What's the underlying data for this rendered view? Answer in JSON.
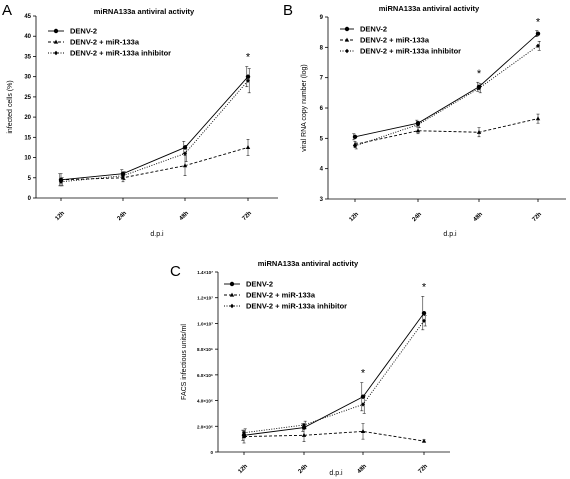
{
  "chart_data": [
    {
      "panel": "A",
      "type": "line",
      "title": "miRNA133a antiviral activity",
      "xlabel": "d.p.i",
      "ylabel": "infected cells (%)",
      "categories": [
        "12h",
        "24h",
        "48h",
        "72h"
      ],
      "ylim": [
        0,
        45
      ],
      "yticks": [
        "0",
        "5",
        "10",
        "15",
        "20",
        "25",
        "30",
        "35",
        "40",
        "45"
      ],
      "legend_position": "top-left",
      "series": [
        {
          "name": "DENV-2",
          "values": [
            4.5,
            6.0,
            12.5,
            30.0
          ],
          "errors": [
            1.5,
            1.0,
            1.5,
            2.5
          ],
          "marker": "circle",
          "dash": "solid"
        },
        {
          "name": "DENV-2 + miR-133a",
          "values": [
            4.5,
            5.0,
            8.0,
            12.5
          ],
          "errors": [
            1.5,
            1.0,
            2.5,
            2.0
          ],
          "marker": "triangle",
          "dash": "dashed"
        },
        {
          "name": "DENV-2 + miR-133a inhibitor",
          "values": [
            4.0,
            5.5,
            11.0,
            29.0
          ],
          "errors": [
            1.0,
            1.0,
            2.0,
            3.0
          ],
          "marker": "diamond",
          "dash": "dotted"
        }
      ],
      "annotations": [
        {
          "category": "72h",
          "text": "*"
        }
      ]
    },
    {
      "panel": "B",
      "type": "line",
      "title": "miRNA133a antiviral activity",
      "xlabel": "d.p.i",
      "ylabel": "viral RNA copy number (log)",
      "categories": [
        "12h",
        "24h",
        "48h",
        "72h"
      ],
      "ylim": [
        3,
        9
      ],
      "yticks": [
        "3",
        "4",
        "5",
        "6",
        "7",
        "8",
        "9"
      ],
      "legend_position": "top-left",
      "series": [
        {
          "name": "DENV-2",
          "values": [
            5.05,
            5.5,
            6.7,
            8.45
          ],
          "errors": [
            0.1,
            0.1,
            0.15,
            0.1
          ],
          "marker": "circle",
          "dash": "solid"
        },
        {
          "name": "DENV-2 + miR-133a",
          "values": [
            4.8,
            5.25,
            5.2,
            5.65
          ],
          "errors": [
            0.1,
            0.1,
            0.15,
            0.15
          ],
          "marker": "triangle",
          "dash": "dashed"
        },
        {
          "name": "DENV-2 + miR-133a inhibitor",
          "values": [
            4.75,
            5.45,
            6.65,
            8.05
          ],
          "errors": [
            0.1,
            0.1,
            0.15,
            0.15
          ],
          "marker": "diamond",
          "dash": "dotted"
        }
      ],
      "annotations": [
        {
          "category": "48h",
          "text": "*"
        },
        {
          "category": "72h",
          "text": "*"
        }
      ]
    },
    {
      "panel": "C",
      "type": "line",
      "title": "miRNA133a antiviral activity",
      "xlabel": "d.p.i",
      "ylabel": "FACS infectious units/ml",
      "categories": [
        "12h",
        "24h",
        "48h",
        "72h"
      ],
      "ylim": [
        0,
        14000000
      ],
      "yticks": [
        "0",
        "2.0×10⁶",
        "4.0×10⁶",
        "6.0×10⁶",
        "8.0×10⁶",
        "1.0×10⁷",
        "1.2×10⁷",
        "1.4×10⁷"
      ],
      "legend_position": "top-left",
      "series": [
        {
          "name": "DENV-2",
          "values": [
            1300000,
            1900000,
            4300000,
            10800000
          ],
          "errors": [
            400000,
            300000,
            1100000,
            1300000
          ],
          "marker": "circle",
          "dash": "solid"
        },
        {
          "name": "DENV-2 + miR-133a",
          "values": [
            1200000,
            1300000,
            1600000,
            850000
          ],
          "errors": [
            500000,
            500000,
            600000,
            100000
          ],
          "marker": "triangle",
          "dash": "dashed"
        },
        {
          "name": "DENV-2 + miR-133a inhibitor",
          "values": [
            1500000,
            2100000,
            3700000,
            10200000
          ],
          "errors": [
            300000,
            300000,
            700000,
            400000
          ],
          "marker": "diamond",
          "dash": "dotted"
        }
      ],
      "annotations": [
        {
          "category": "48h",
          "text": "*"
        },
        {
          "category": "72h",
          "text": "*"
        }
      ]
    }
  ]
}
